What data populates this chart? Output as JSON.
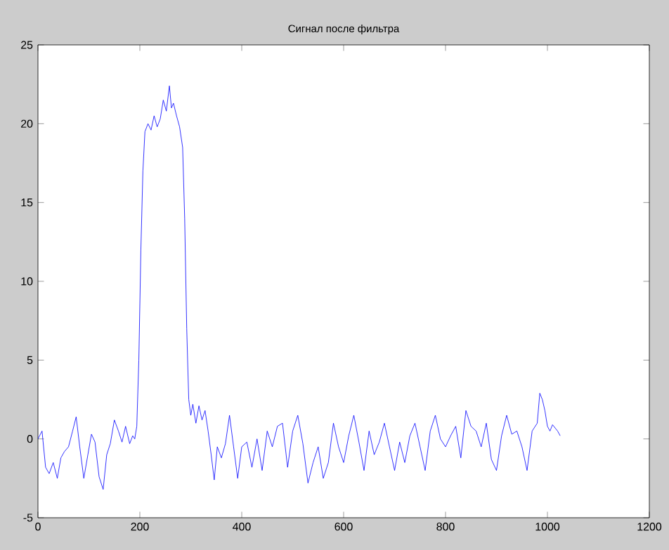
{
  "chart_data": {
    "type": "line",
    "title": "Сигнал после фильтра",
    "x": [
      0,
      8,
      15,
      22,
      30,
      38,
      45,
      52,
      60,
      68,
      75,
      82,
      90,
      98,
      105,
      112,
      120,
      128,
      135,
      142,
      150,
      158,
      165,
      172,
      180,
      186,
      190,
      194,
      198,
      202,
      206,
      210,
      216,
      222,
      228,
      234,
      240,
      246,
      252,
      258,
      262,
      266,
      272,
      278,
      284,
      288,
      292,
      296,
      300,
      304,
      310,
      316,
      322,
      328,
      334,
      340,
      346,
      352,
      360,
      368,
      376,
      384,
      392,
      400,
      410,
      420,
      430,
      440,
      450,
      460,
      470,
      480,
      490,
      500,
      510,
      520,
      530,
      540,
      550,
      560,
      570,
      580,
      590,
      600,
      610,
      620,
      630,
      640,
      650,
      660,
      670,
      680,
      690,
      700,
      710,
      720,
      730,
      740,
      750,
      760,
      770,
      780,
      790,
      800,
      810,
      820,
      830,
      840,
      850,
      860,
      870,
      880,
      890,
      900,
      910,
      920,
      930,
      940,
      950,
      960,
      970,
      980,
      985,
      990,
      995,
      1000,
      1005,
      1010,
      1015,
      1020,
      1025
    ],
    "series": [
      {
        "color": "#0000ff",
        "values": [
          0.0,
          0.5,
          -1.8,
          -2.2,
          -1.5,
          -2.5,
          -1.2,
          -0.8,
          -0.5,
          0.5,
          1.4,
          -0.5,
          -2.5,
          -1.0,
          0.3,
          -0.2,
          -2.4,
          -3.2,
          -1.0,
          -0.3,
          1.2,
          0.5,
          -0.2,
          0.8,
          -0.3,
          0.2,
          0.0,
          0.8,
          5.0,
          12.0,
          17.0,
          19.5,
          20.0,
          19.6,
          20.5,
          19.8,
          20.3,
          21.5,
          20.8,
          22.4,
          21.0,
          21.3,
          20.5,
          19.8,
          18.5,
          14.0,
          7.0,
          2.5,
          1.5,
          2.2,
          1.0,
          2.1,
          1.2,
          1.8,
          0.5,
          -1.0,
          -2.6,
          -0.5,
          -1.2,
          -0.3,
          1.5,
          -0.5,
          -2.5,
          -0.5,
          -0.2,
          -1.8,
          0.0,
          -2.0,
          0.5,
          -0.5,
          0.8,
          1.0,
          -1.8,
          0.5,
          1.5,
          -0.3,
          -2.8,
          -1.5,
          -0.5,
          -2.5,
          -1.5,
          1.0,
          -0.5,
          -1.5,
          0.2,
          1.5,
          -0.2,
          -2.0,
          0.5,
          -1.0,
          -0.2,
          1.0,
          -0.5,
          -2.0,
          -0.2,
          -1.5,
          0.2,
          1.0,
          -0.5,
          -2.0,
          0.5,
          1.5,
          0.0,
          -0.5,
          0.2,
          0.8,
          -1.2,
          1.8,
          0.8,
          0.5,
          -0.5,
          1.0,
          -1.3,
          -2.0,
          0.2,
          1.5,
          0.3,
          0.5,
          -0.5,
          -2.0,
          0.5,
          1.0,
          2.9,
          2.5,
          1.8,
          0.8,
          0.5,
          0.9,
          0.7,
          0.5,
          0.2
        ]
      }
    ],
    "xlim": [
      0,
      1200
    ],
    "ylim": [
      -5,
      25
    ],
    "xticks": [
      0,
      200,
      400,
      600,
      800,
      1000,
      1200
    ],
    "yticks": [
      -5,
      0,
      5,
      10,
      15,
      20,
      25
    ],
    "grid": false,
    "marker": "none",
    "line_style": "solid"
  }
}
